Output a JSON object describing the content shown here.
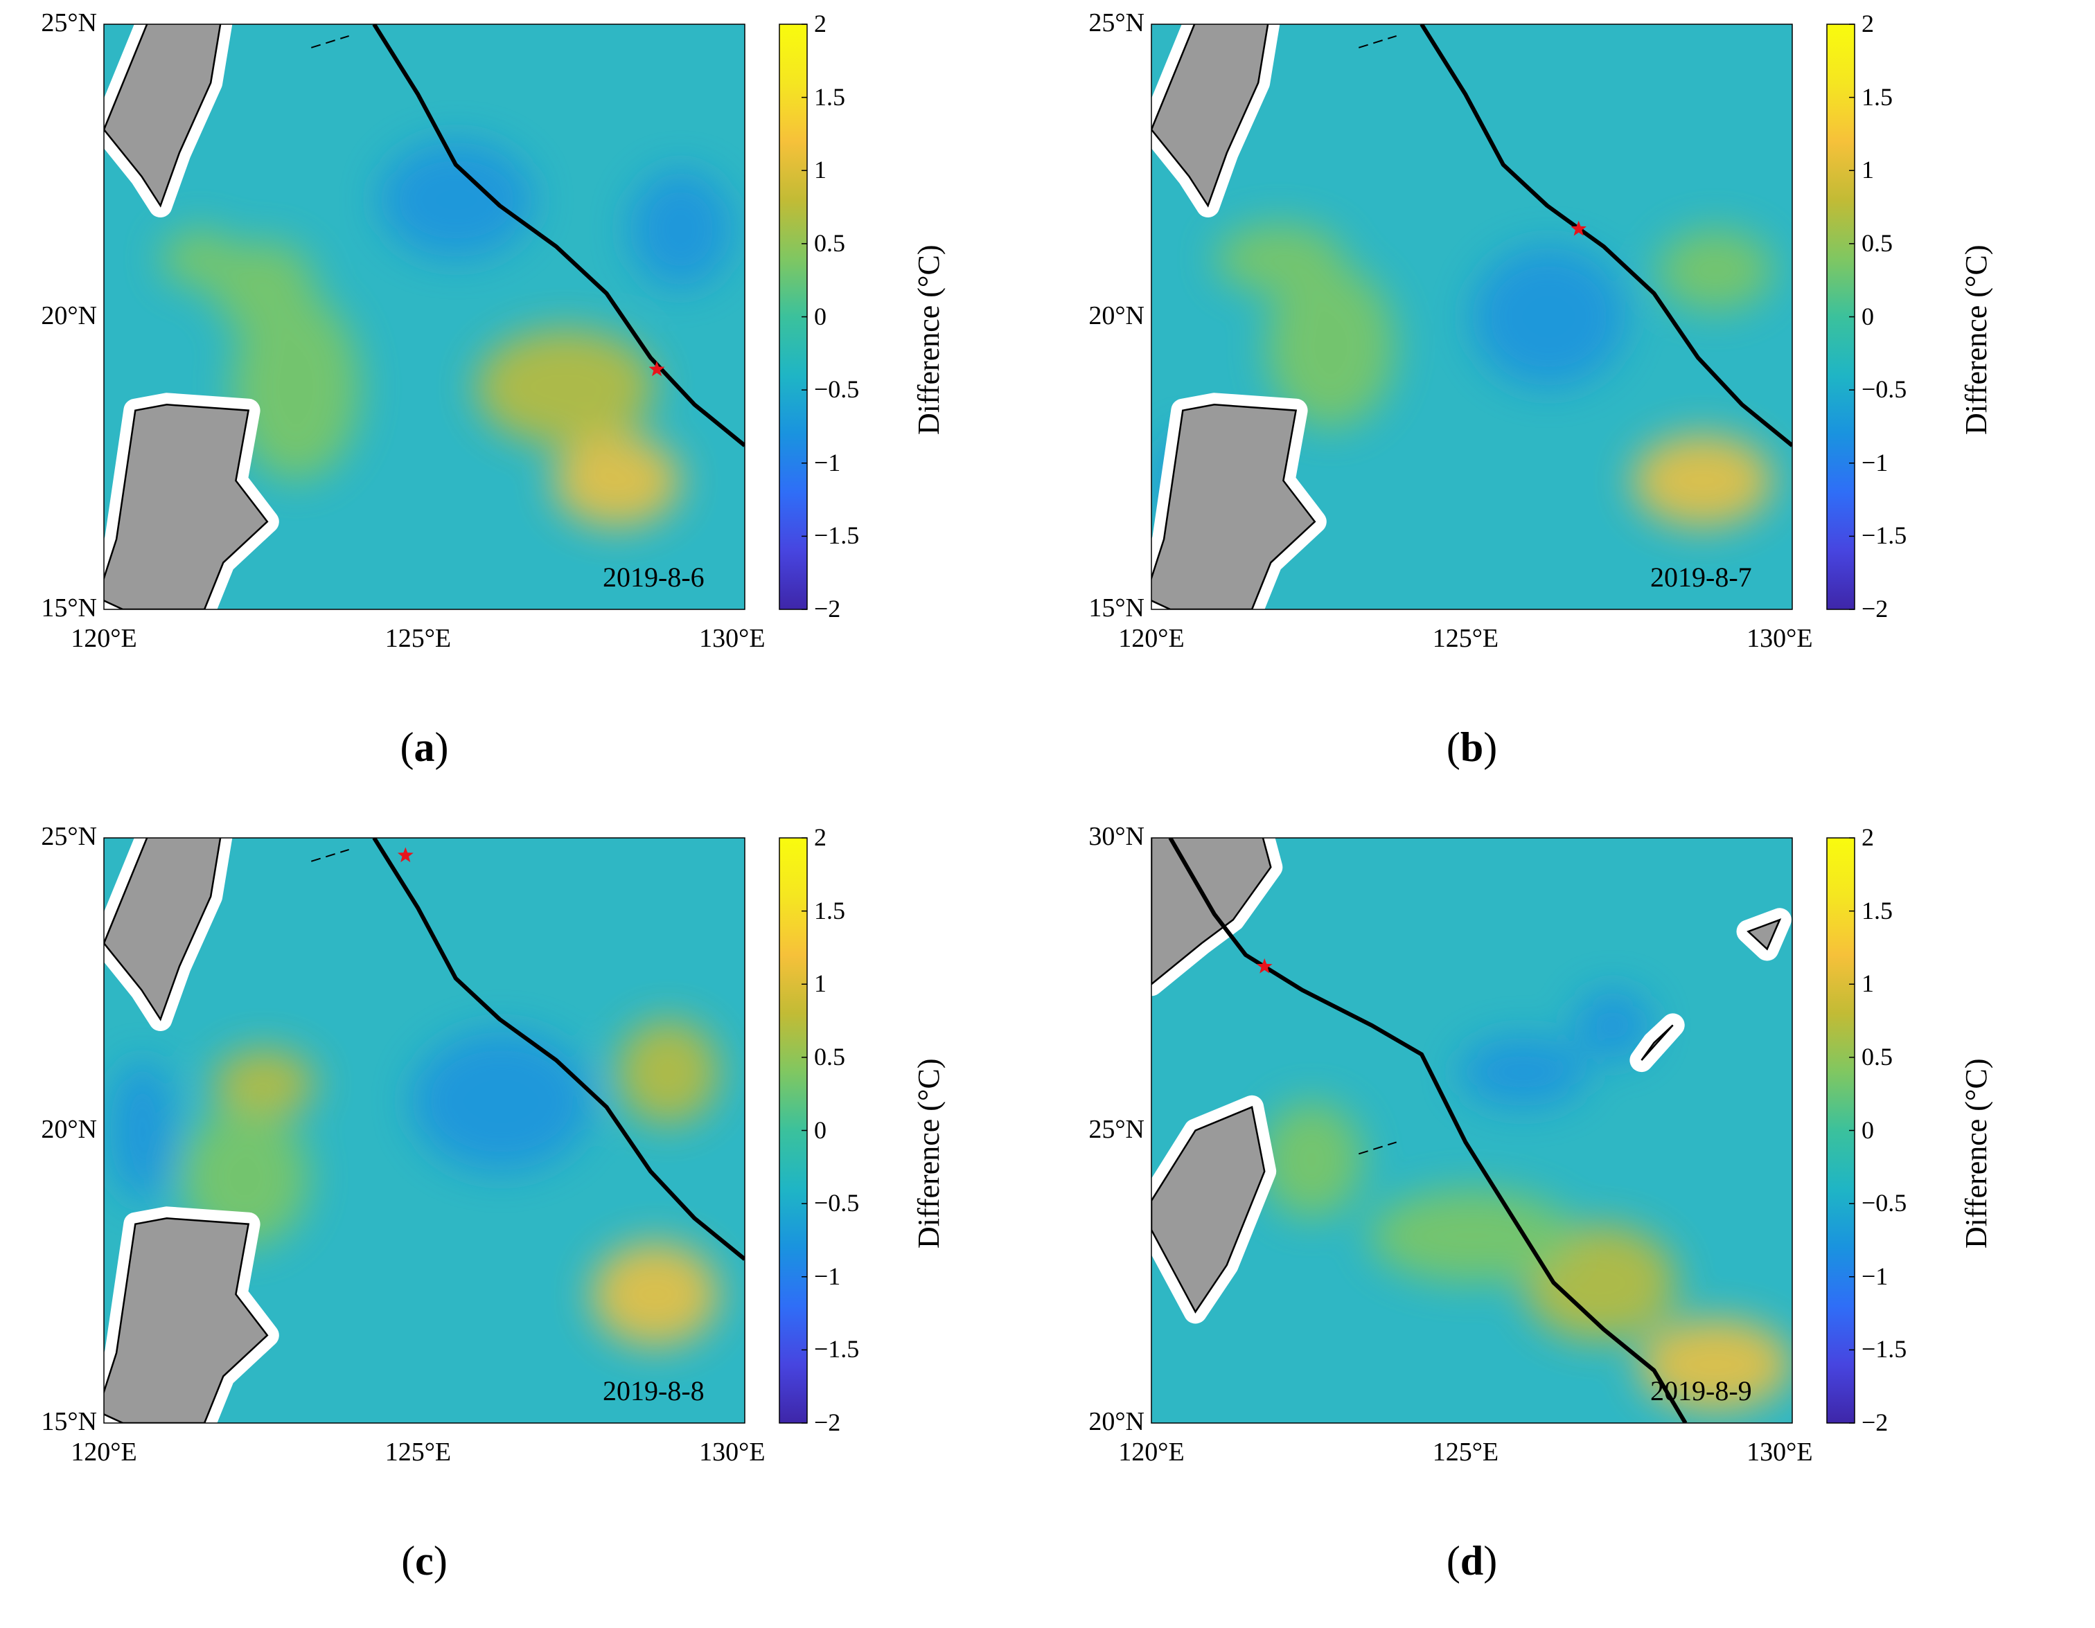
{
  "figure": {
    "colorbar": {
      "label": "Difference (°C)",
      "ticks": [
        "2",
        "1.5",
        "1",
        "0.5",
        "0",
        "−0.5",
        "−1",
        "−1.5",
        "−2"
      ],
      "colormap": [
        "#3e26a8",
        "#4745e0",
        "#2f6ef7",
        "#1a93df",
        "#1fb5c5",
        "#3bc19c",
        "#80c761",
        "#c2bb35",
        "#f6c13a",
        "#f5e621",
        "#f9fb0e"
      ]
    },
    "panels": [
      {
        "id": "a",
        "label_open": "(",
        "label_letter": "a",
        "label_close": ")",
        "date": "2019-8-6",
        "yticks": [
          "25°N",
          "20°N",
          "15°N"
        ],
        "xticks": [
          "120°E",
          "125°E",
          "130°E"
        ],
        "lat_range": [
          15,
          25
        ],
        "lon_range": [
          120,
          130.2
        ],
        "track": [
          [
            124.3,
            25.0
          ],
          [
            125.0,
            23.8
          ],
          [
            125.6,
            22.6
          ],
          [
            126.3,
            21.9
          ],
          [
            127.2,
            21.2
          ],
          [
            128.0,
            20.4
          ],
          [
            128.7,
            19.3
          ],
          [
            129.4,
            18.5
          ],
          [
            130.2,
            17.8
          ]
        ],
        "star": [
          128.8,
          19.1
        ]
      },
      {
        "id": "b",
        "label_open": "(",
        "label_letter": "b",
        "label_close": ")",
        "date": "2019-8-7",
        "yticks": [
          "25°N",
          "20°N",
          "15°N"
        ],
        "xticks": [
          "120°E",
          "125°E",
          "130°E"
        ],
        "lat_range": [
          15,
          25
        ],
        "lon_range": [
          120,
          130.2
        ],
        "track": [
          [
            124.3,
            25.0
          ],
          [
            125.0,
            23.8
          ],
          [
            125.6,
            22.6
          ],
          [
            126.3,
            21.9
          ],
          [
            127.2,
            21.2
          ],
          [
            128.0,
            20.4
          ],
          [
            128.7,
            19.3
          ],
          [
            129.4,
            18.5
          ],
          [
            130.2,
            17.8
          ]
        ],
        "star": [
          126.8,
          21.5
        ]
      },
      {
        "id": "c",
        "label_open": "(",
        "label_letter": "c",
        "label_close": ")",
        "date": "2019-8-8",
        "yticks": [
          "25°N",
          "20°N",
          "15°N"
        ],
        "xticks": [
          "120°E",
          "125°E",
          "130°E"
        ],
        "lat_range": [
          15,
          25
        ],
        "lon_range": [
          120,
          130.2
        ],
        "track": [
          [
            124.3,
            25.0
          ],
          [
            125.0,
            23.8
          ],
          [
            125.6,
            22.6
          ],
          [
            126.3,
            21.9
          ],
          [
            127.2,
            21.2
          ],
          [
            128.0,
            20.4
          ],
          [
            128.7,
            19.3
          ],
          [
            129.4,
            18.5
          ],
          [
            130.2,
            17.8
          ]
        ],
        "star": [
          124.8,
          24.7
        ]
      },
      {
        "id": "d",
        "label_open": "(",
        "label_letter": "d",
        "label_close": ")",
        "date": "2019-8-9",
        "yticks": [
          "30°N",
          "25°N",
          "20°N"
        ],
        "xticks": [
          "120°E",
          "125°E",
          "130°E"
        ],
        "lat_range": [
          20,
          30
        ],
        "lon_range": [
          120,
          130.2
        ],
        "track": [
          [
            120.3,
            30.0
          ],
          [
            121.0,
            28.7
          ],
          [
            121.5,
            28.0
          ],
          [
            122.4,
            27.4
          ],
          [
            123.5,
            26.8
          ],
          [
            124.3,
            26.3
          ],
          [
            125.0,
            24.8
          ],
          [
            125.7,
            23.6
          ],
          [
            126.4,
            22.4
          ],
          [
            127.2,
            21.6
          ],
          [
            128.0,
            20.9
          ],
          [
            128.5,
            20.0
          ]
        ],
        "star": [
          121.8,
          27.8
        ]
      }
    ]
  }
}
